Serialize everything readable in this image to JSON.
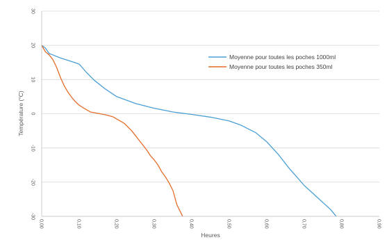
{
  "chart_data": {
    "type": "line",
    "xlabel": "Heures",
    "ylabel": "Température (°C)",
    "xlim": [
      0,
      0.9
    ],
    "ylim": [
      -30,
      30
    ],
    "x_ticks": [
      0,
      0.1,
      0.2,
      0.3,
      0.4,
      0.5,
      0.6,
      0.7,
      0.8,
      0.9
    ],
    "x_tick_labels": [
      "0,00",
      "0,10",
      "0,20",
      "0,30",
      "0,40",
      "0,50",
      "0,60",
      "0,70",
      "0,80",
      "0,90"
    ],
    "y_ticks": [
      -30,
      -20,
      -10,
      0,
      10,
      20,
      30
    ],
    "y_tick_labels": [
      "-30",
      "-20",
      "-10",
      "0",
      "10",
      "20",
      "30"
    ],
    "grid": "horizontal",
    "legend_position": "top-right",
    "series": [
      {
        "name": "Moyenne pour toutes les poches 1000ml",
        "color": "#4a9fd5",
        "x": [
          0,
          0.01,
          0.02,
          0.03,
          0.05,
          0.07,
          0.09,
          0.1,
          0.12,
          0.14,
          0.17,
          0.2,
          0.25,
          0.3,
          0.35,
          0.4,
          0.45,
          0.5,
          0.53,
          0.57,
          0.6,
          0.63,
          0.66,
          0.7,
          0.73,
          0.77,
          0.8,
          0.84
        ],
        "y": [
          20,
          19.2,
          17.6,
          17.2,
          16.3,
          15.6,
          14.9,
          14.5,
          12.0,
          9.8,
          7.2,
          5.0,
          3.0,
          1.6,
          0.5,
          -0.2,
          -1.0,
          -2.1,
          -3.3,
          -5.5,
          -8.2,
          -11.8,
          -16.0,
          -21.0,
          -24.0,
          -28.0,
          -32.0,
          -37.0
        ]
      },
      {
        "name": "Moyenne pour toutes les poches 350ml",
        "color": "#e36d2a",
        "x": [
          0,
          0.01,
          0.02,
          0.03,
          0.04,
          0.05,
          0.06,
          0.07,
          0.08,
          0.09,
          0.1,
          0.11,
          0.13,
          0.15,
          0.17,
          0.19,
          0.22,
          0.24,
          0.26,
          0.28,
          0.29,
          0.3,
          0.31,
          0.32,
          0.33,
          0.34,
          0.35,
          0.36,
          0.38,
          0.4,
          0.42
        ],
        "y": [
          20,
          18.1,
          17.2,
          15.8,
          13.5,
          10.6,
          8.2,
          6.3,
          4.8,
          3.5,
          2.5,
          1.8,
          0.5,
          0.1,
          -0.3,
          -0.9,
          -2.8,
          -5.0,
          -7.8,
          -10.6,
          -12.3,
          -13.5,
          -15.0,
          -17.0,
          -18.5,
          -20.3,
          -22.5,
          -26.5,
          -31.0,
          -35.0,
          -38.0
        ]
      }
    ]
  }
}
